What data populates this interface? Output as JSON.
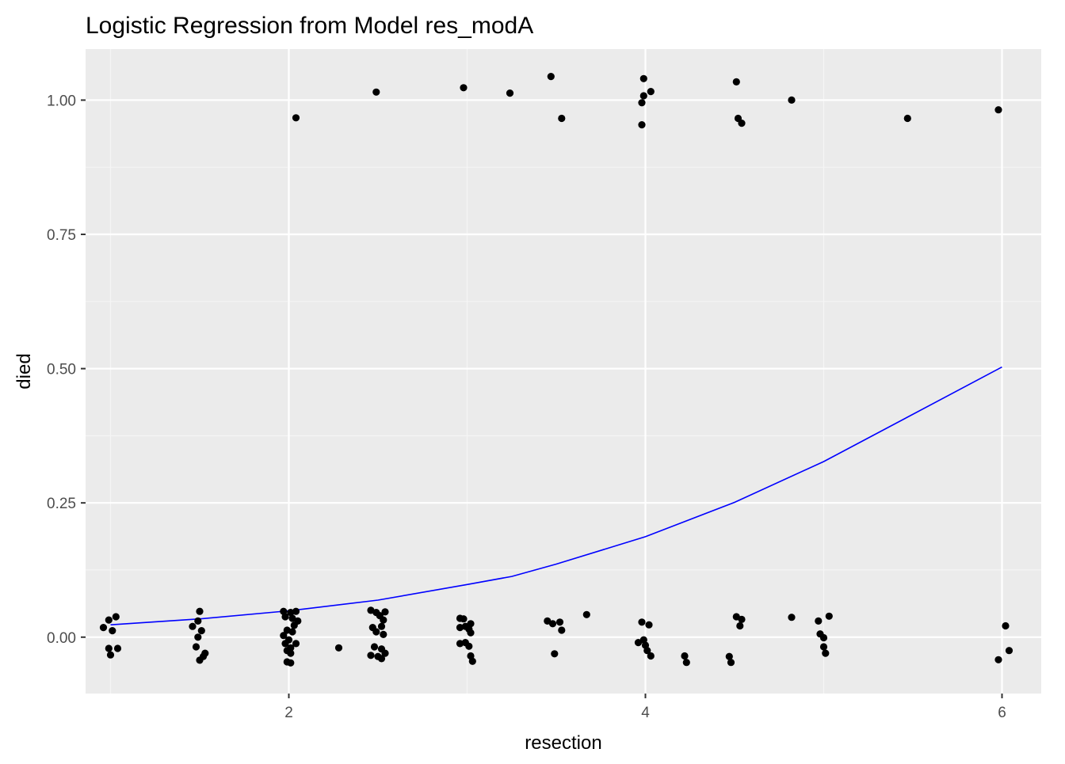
{
  "chart_data": {
    "type": "scatter",
    "title": "Logistic Regression from Model res_modA",
    "xlabel": "resection",
    "ylabel": "died",
    "xlim": [
      0.86,
      6.22
    ],
    "ylim": [
      -0.105,
      1.095
    ],
    "x_ticks": [
      2,
      4,
      6
    ],
    "x_tick_labels": [
      "2",
      "4",
      "6"
    ],
    "y_ticks": [
      0,
      0.25,
      0.5,
      0.75,
      1
    ],
    "y_tick_labels": [
      "0.00",
      "0.25",
      "0.50",
      "0.75",
      "1.00"
    ],
    "grid": true,
    "legend": "none",
    "colors": {
      "panel_background": "#ebebeb",
      "grid_major": "#ffffff",
      "grid_minor": "#f5f5f5",
      "points": "#000000",
      "fit_line": "#0000ff",
      "tick_text": "#4d4d4d",
      "tick_marks": "#333333"
    },
    "points": [
      {
        "x": 0.96,
        "y": 0.018
      },
      {
        "x": 0.99,
        "y": 0.032
      },
      {
        "x": 1.03,
        "y": 0.038
      },
      {
        "x": 1.01,
        "y": 0.012
      },
      {
        "x": 0.99,
        "y": -0.021
      },
      {
        "x": 1.04,
        "y": -0.021
      },
      {
        "x": 1.0,
        "y": -0.033
      },
      {
        "x": 1.46,
        "y": 0.02
      },
      {
        "x": 1.5,
        "y": 0.048
      },
      {
        "x": 1.49,
        "y": 0.03
      },
      {
        "x": 1.51,
        "y": 0.012
      },
      {
        "x": 1.49,
        "y": 0.0
      },
      {
        "x": 1.48,
        "y": -0.018
      },
      {
        "x": 1.53,
        "y": -0.03
      },
      {
        "x": 1.52,
        "y": -0.036
      },
      {
        "x": 1.5,
        "y": -0.043
      },
      {
        "x": 1.97,
        "y": 0.048
      },
      {
        "x": 2.01,
        "y": 0.046
      },
      {
        "x": 2.04,
        "y": 0.048
      },
      {
        "x": 1.98,
        "y": 0.038
      },
      {
        "x": 2.02,
        "y": 0.035
      },
      {
        "x": 2.05,
        "y": 0.03
      },
      {
        "x": 2.03,
        "y": 0.022
      },
      {
        "x": 1.99,
        "y": 0.013
      },
      {
        "x": 2.02,
        "y": 0.01
      },
      {
        "x": 1.97,
        "y": 0.003
      },
      {
        "x": 2.0,
        "y": -0.005
      },
      {
        "x": 1.98,
        "y": -0.012
      },
      {
        "x": 2.04,
        "y": -0.012
      },
      {
        "x": 2.01,
        "y": -0.02
      },
      {
        "x": 1.99,
        "y": -0.025
      },
      {
        "x": 2.01,
        "y": -0.03
      },
      {
        "x": 1.99,
        "y": -0.046
      },
      {
        "x": 2.01,
        "y": -0.048
      },
      {
        "x": 2.28,
        "y": -0.02
      },
      {
        "x": 2.46,
        "y": 0.05
      },
      {
        "x": 2.49,
        "y": 0.046
      },
      {
        "x": 2.54,
        "y": 0.047
      },
      {
        "x": 2.51,
        "y": 0.04
      },
      {
        "x": 2.53,
        "y": 0.032
      },
      {
        "x": 2.47,
        "y": 0.018
      },
      {
        "x": 2.52,
        "y": 0.02
      },
      {
        "x": 2.49,
        "y": 0.01
      },
      {
        "x": 2.53,
        "y": 0.005
      },
      {
        "x": 2.48,
        "y": -0.018
      },
      {
        "x": 2.52,
        "y": -0.022
      },
      {
        "x": 2.46,
        "y": -0.034
      },
      {
        "x": 2.5,
        "y": -0.036
      },
      {
        "x": 2.54,
        "y": -0.03
      },
      {
        "x": 2.52,
        "y": -0.04
      },
      {
        "x": 2.96,
        "y": 0.035
      },
      {
        "x": 2.98,
        "y": 0.034
      },
      {
        "x": 3.02,
        "y": 0.025
      },
      {
        "x": 2.96,
        "y": 0.018
      },
      {
        "x": 3.01,
        "y": 0.015
      },
      {
        "x": 2.99,
        "y": 0.02
      },
      {
        "x": 3.02,
        "y": 0.008
      },
      {
        "x": 2.99,
        "y": -0.01
      },
      {
        "x": 2.96,
        "y": -0.012
      },
      {
        "x": 3.01,
        "y": -0.017
      },
      {
        "x": 3.02,
        "y": -0.035
      },
      {
        "x": 3.03,
        "y": -0.045
      },
      {
        "x": 3.45,
        "y": 0.03
      },
      {
        "x": 3.48,
        "y": 0.025
      },
      {
        "x": 3.52,
        "y": 0.028
      },
      {
        "x": 3.53,
        "y": 0.013
      },
      {
        "x": 3.49,
        "y": -0.031
      },
      {
        "x": 3.67,
        "y": 0.042
      },
      {
        "x": 3.98,
        "y": 0.028
      },
      {
        "x": 4.02,
        "y": 0.023
      },
      {
        "x": 3.96,
        "y": -0.01
      },
      {
        "x": 3.99,
        "y": -0.005
      },
      {
        "x": 4.0,
        "y": -0.015
      },
      {
        "x": 4.01,
        "y": -0.025
      },
      {
        "x": 4.03,
        "y": -0.035
      },
      {
        "x": 4.22,
        "y": -0.035
      },
      {
        "x": 4.23,
        "y": -0.047
      },
      {
        "x": 4.47,
        "y": -0.036
      },
      {
        "x": 4.48,
        "y": -0.047
      },
      {
        "x": 4.51,
        "y": 0.038
      },
      {
        "x": 4.54,
        "y": 0.033
      },
      {
        "x": 4.53,
        "y": 0.021
      },
      {
        "x": 4.82,
        "y": 0.037
      },
      {
        "x": 4.97,
        "y": 0.03
      },
      {
        "x": 5.03,
        "y": 0.039
      },
      {
        "x": 4.98,
        "y": 0.006
      },
      {
        "x": 5.0,
        "y": -0.001
      },
      {
        "x": 5.0,
        "y": -0.018
      },
      {
        "x": 5.01,
        "y": -0.03
      },
      {
        "x": 5.98,
        "y": -0.042
      },
      {
        "x": 6.02,
        "y": 0.021
      },
      {
        "x": 6.04,
        "y": -0.025
      },
      {
        "x": 2.04,
        "y": 0.967
      },
      {
        "x": 2.49,
        "y": 1.015
      },
      {
        "x": 2.98,
        "y": 1.023
      },
      {
        "x": 3.24,
        "y": 1.013
      },
      {
        "x": 3.47,
        "y": 1.044
      },
      {
        "x": 3.53,
        "y": 0.966
      },
      {
        "x": 3.99,
        "y": 1.04
      },
      {
        "x": 4.03,
        "y": 1.016
      },
      {
        "x": 3.99,
        "y": 1.008
      },
      {
        "x": 3.98,
        "y": 0.995
      },
      {
        "x": 3.98,
        "y": 0.954
      },
      {
        "x": 4.51,
        "y": 1.034
      },
      {
        "x": 4.52,
        "y": 0.966
      },
      {
        "x": 4.54,
        "y": 0.957
      },
      {
        "x": 4.82,
        "y": 1.0
      },
      {
        "x": 5.47,
        "y": 0.966
      },
      {
        "x": 5.98,
        "y": 0.982
      }
    ],
    "fit_line": {
      "x": [
        1,
        1.5,
        2,
        2.5,
        3,
        3.25,
        3.5,
        4,
        4.5,
        5,
        6
      ],
      "y": [
        0.023,
        0.034,
        0.049,
        0.069,
        0.098,
        0.113,
        0.136,
        0.187,
        0.251,
        0.327,
        0.503
      ]
    }
  }
}
